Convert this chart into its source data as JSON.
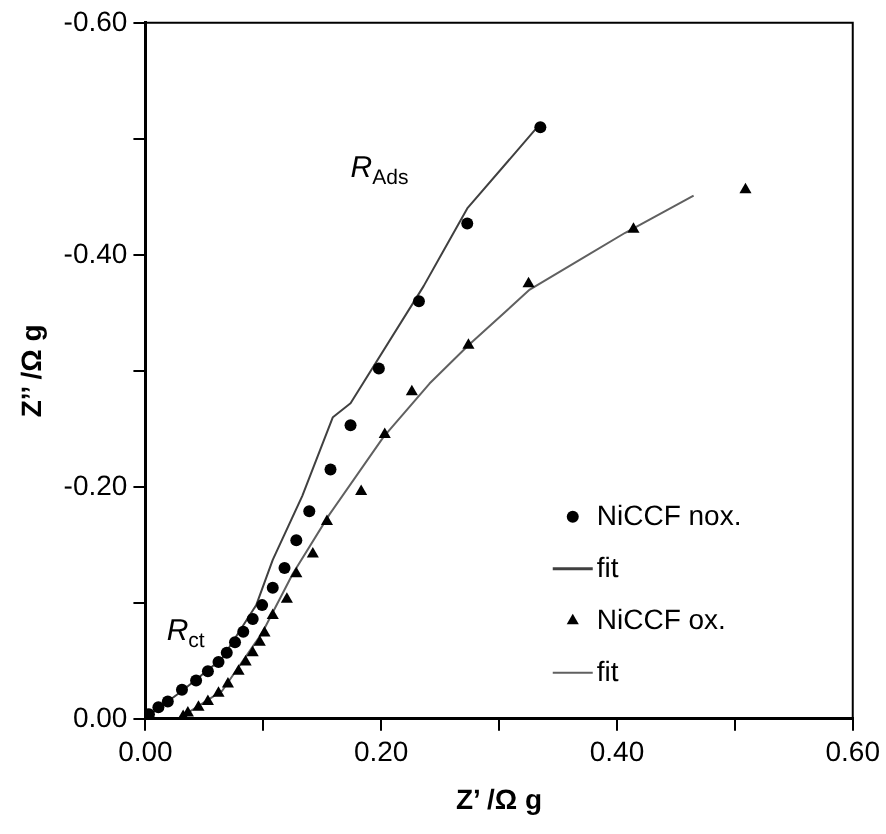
{
  "chart_data": {
    "type": "scatter",
    "xlabel": "Z’ /Ω g",
    "ylabel": "Z’’ /Ω g",
    "xlim": [
      0,
      0.6
    ],
    "xticks": [
      {
        "value": 0,
        "label": "0.00"
      },
      {
        "value": 0.1,
        "label": null
      },
      {
        "value": 0.2,
        "label": "0.20"
      },
      {
        "value": 0.3,
        "label": null
      },
      {
        "value": 0.4,
        "label": "0.40"
      },
      {
        "value": 0.5,
        "label": null
      },
      {
        "value": 0.6,
        "label": "0.60"
      }
    ],
    "ylim": [
      0,
      -0.6
    ],
    "yticks": [
      {
        "value": 0,
        "label": "0.00"
      },
      {
        "value": -0.1,
        "label": null
      },
      {
        "value": -0.2,
        "label": "-0.20"
      },
      {
        "value": -0.3,
        "label": null
      },
      {
        "value": -0.4,
        "label": "-0.40"
      },
      {
        "value": -0.5,
        "label": null
      },
      {
        "value": -0.6,
        "label": "-0.60"
      }
    ],
    "grid": false,
    "legend": "bottom right",
    "annotations": [
      "R$_{Ads}$",
      "R$_{ct}$"
    ],
    "series": [
      {
        "name": "NiCCF nox.",
        "type": "scatter",
        "marker": "circle",
        "color": "#000000",
        "x": [
          0.003,
          0.011,
          0.019,
          0.031,
          0.043,
          0.053,
          0.062,
          0.069,
          0.076,
          0.083,
          0.091,
          0.099,
          0.108,
          0.118,
          0.128,
          0.139,
          0.157,
          0.174,
          0.198,
          0.232,
          0.273,
          0.335
        ],
        "values": [
          -0.004,
          -0.01,
          -0.015,
          -0.025,
          -0.033,
          -0.041,
          -0.049,
          -0.057,
          -0.066,
          -0.075,
          -0.086,
          -0.098,
          -0.113,
          -0.13,
          -0.154,
          -0.179,
          -0.215,
          -0.253,
          -0.302,
          -0.36,
          -0.427,
          -0.51
        ]
      },
      {
        "name": "fit",
        "type": "line",
        "marker": "none",
        "line_style": "solid",
        "color": "#404040",
        "x": [
          0.003,
          0.031,
          0.065,
          0.094,
          0.108,
          0.133,
          0.159,
          0.174,
          0.236,
          0.273,
          0.335
        ],
        "values": [
          -0.003,
          -0.024,
          -0.052,
          -0.098,
          -0.137,
          -0.192,
          -0.26,
          -0.272,
          -0.373,
          -0.44,
          -0.513
        ]
      },
      {
        "name": "NiCCF ox.",
        "type": "scatter",
        "marker": "triangle",
        "color": "#000000",
        "x": [
          0.032,
          0.036,
          0.045,
          0.053,
          0.062,
          0.07,
          0.079,
          0.085,
          0.091,
          0.097,
          0.101,
          0.108,
          0.12,
          0.128,
          0.142,
          0.154,
          0.183,
          0.203,
          0.226,
          0.274,
          0.325,
          0.414,
          0.509
        ],
        "values": [
          -0.002,
          -0.005,
          -0.01,
          -0.015,
          -0.022,
          -0.03,
          -0.041,
          -0.049,
          -0.057,
          -0.066,
          -0.074,
          -0.089,
          -0.103,
          -0.125,
          -0.142,
          -0.17,
          -0.196,
          -0.245,
          -0.282,
          -0.322,
          -0.375,
          -0.422,
          -0.456
        ]
      },
      {
        "name": "fit",
        "type": "line",
        "marker": "none",
        "line_style": "solid",
        "color": "#606060",
        "x": [
          0.031,
          0.065,
          0.099,
          0.125,
          0.156,
          0.202,
          0.241,
          0.274,
          0.326,
          0.407,
          0.465
        ],
        "values": [
          -0.002,
          -0.024,
          -0.074,
          -0.125,
          -0.176,
          -0.243,
          -0.289,
          -0.322,
          -0.37,
          -0.419,
          -0.451
        ]
      }
    ]
  }
}
